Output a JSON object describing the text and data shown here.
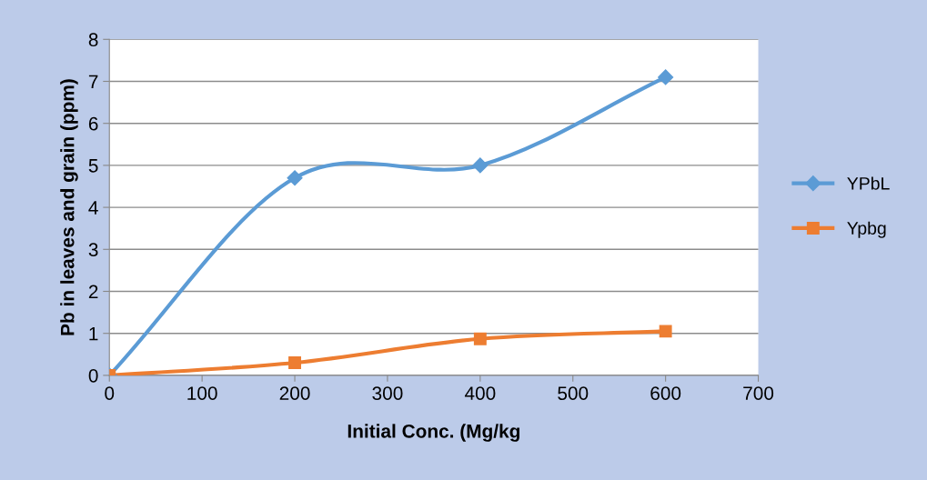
{
  "chart_data": {
    "type": "line",
    "xlabel": "Initial Conc. (Mg/kg",
    "ylabel": "Pb in leaves and grain (ppm)",
    "x": [
      0,
      200,
      400,
      600
    ],
    "series": [
      {
        "name": "YPbL",
        "color": "#5b9bd5",
        "marker": "diamond",
        "values": [
          0,
          4.7,
          5.0,
          7.1
        ]
      },
      {
        "name": "Ypbg",
        "color": "#ed7d31",
        "marker": "square",
        "values": [
          0,
          0.3,
          0.87,
          1.05
        ]
      }
    ],
    "xlim": [
      0,
      700
    ],
    "xticks": [
      0,
      100,
      200,
      300,
      400,
      500,
      600,
      700
    ],
    "ylim": [
      0,
      8
    ],
    "yticks": [
      0,
      1,
      2,
      3,
      4,
      5,
      6,
      7,
      8
    ],
    "grid": "y",
    "legend": "right",
    "line_style": "solid"
  }
}
